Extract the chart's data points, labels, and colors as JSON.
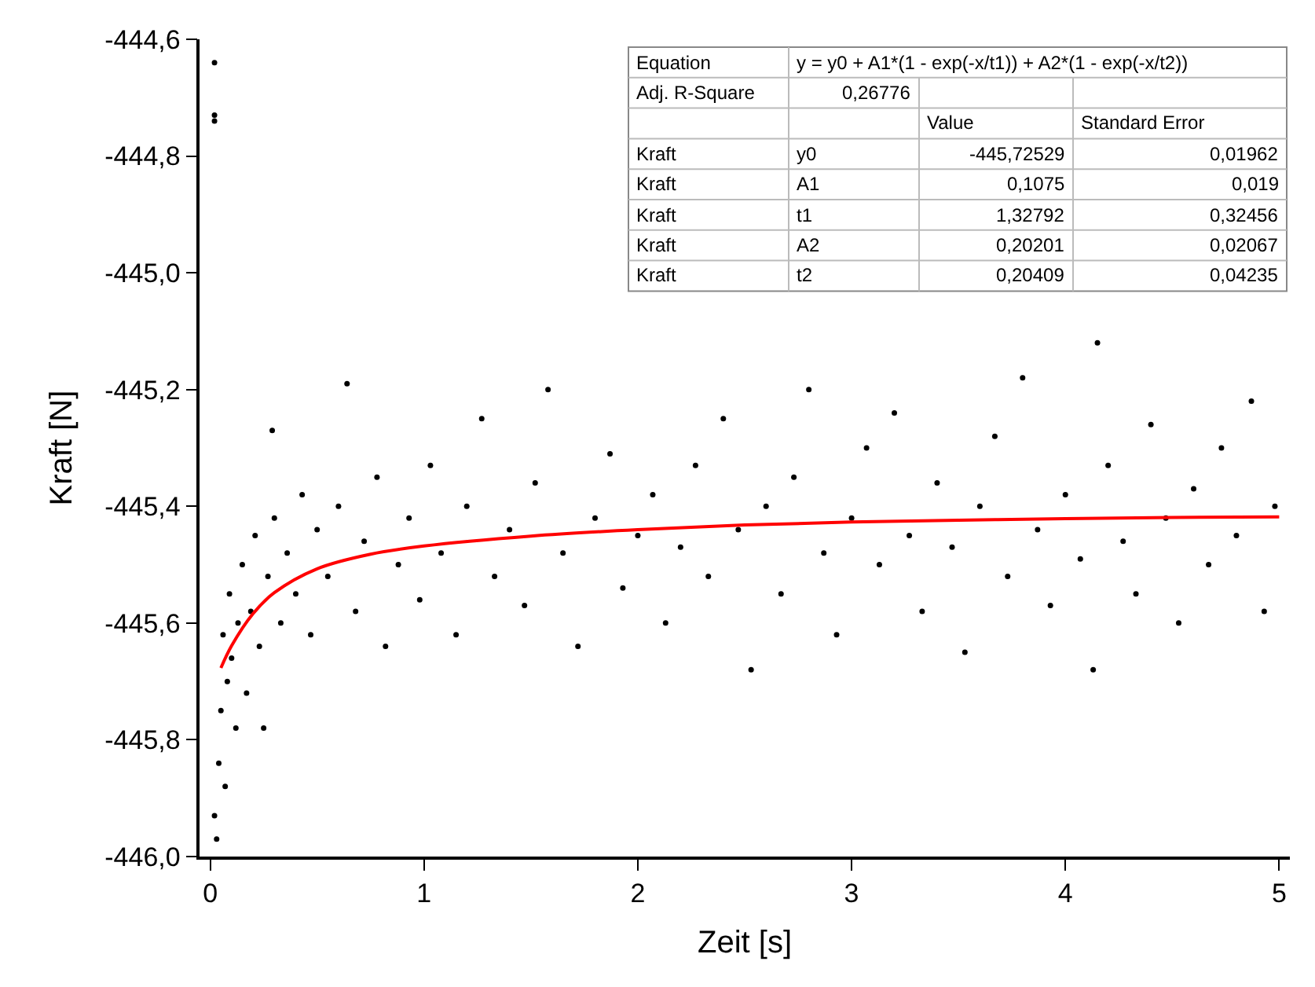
{
  "chart_data": {
    "type": "scatter",
    "xlabel": "Zeit [s]",
    "ylabel": "Kraft [N]",
    "xlim": [
      -0.05,
      5.05
    ],
    "xticks": [
      0,
      1,
      2,
      3,
      4,
      5
    ],
    "ylim": [
      -446.0,
      -444.6
    ],
    "yticks": [
      {
        "value": -446.0,
        "label": "-446,0"
      },
      {
        "value": -445.8,
        "label": "-445,8"
      },
      {
        "value": -445.6,
        "label": "-445,6"
      },
      {
        "value": -445.4,
        "label": "-445,4"
      },
      {
        "value": -445.2,
        "label": "-445,2"
      },
      {
        "value": -445.0,
        "label": "-445,0"
      },
      {
        "value": -444.8,
        "label": "-444,8"
      },
      {
        "value": -444.6,
        "label": "-444,6"
      }
    ],
    "grid": false,
    "series": [
      {
        "color": "#000000",
        "marker": "circle",
        "x": [
          0.02,
          0.02,
          0.02,
          0.02,
          0.03,
          0.04,
          0.05,
          0.06,
          0.07,
          0.08,
          0.09,
          0.1,
          0.12,
          0.13,
          0.15,
          0.17,
          0.19,
          0.21,
          0.23,
          0.25,
          0.27,
          0.29,
          0.3,
          0.33,
          0.36,
          0.4,
          0.43,
          0.47,
          0.5,
          0.55,
          0.6,
          0.64,
          0.68,
          0.72,
          0.78,
          0.82,
          0.88,
          0.93,
          0.98,
          1.03,
          1.08,
          1.15,
          1.2,
          1.27,
          1.33,
          1.4,
          1.47,
          1.52,
          1.58,
          1.65,
          1.72,
          1.8,
          1.87,
          1.93,
          2.0,
          2.07,
          2.13,
          2.2,
          2.27,
          2.33,
          2.4,
          2.47,
          2.53,
          2.6,
          2.67,
          2.73,
          2.8,
          2.87,
          2.93,
          3.0,
          3.07,
          3.13,
          3.2,
          3.27,
          3.33,
          3.4,
          3.47,
          3.53,
          3.6,
          3.67,
          3.73,
          3.8,
          3.87,
          3.93,
          4.0,
          4.07,
          4.13,
          4.15,
          4.2,
          4.27,
          4.33,
          4.4,
          4.47,
          4.53,
          4.6,
          4.67,
          4.73,
          4.8,
          4.87,
          4.93,
          4.98
        ],
        "values": [
          -444.64,
          -444.73,
          -444.74,
          -445.93,
          -445.97,
          -445.84,
          -445.75,
          -445.62,
          -445.88,
          -445.7,
          -445.55,
          -445.66,
          -445.78,
          -445.6,
          -445.5,
          -445.72,
          -445.58,
          -445.45,
          -445.64,
          -445.78,
          -445.52,
          -445.27,
          -445.42,
          -445.6,
          -445.48,
          -445.55,
          -445.38,
          -445.62,
          -445.44,
          -445.52,
          -445.4,
          -445.19,
          -445.58,
          -445.46,
          -445.35,
          -445.64,
          -445.5,
          -445.42,
          -445.56,
          -445.33,
          -445.48,
          -445.62,
          -445.4,
          -445.25,
          -445.52,
          -445.44,
          -445.57,
          -445.36,
          -445.2,
          -445.48,
          -445.64,
          -445.42,
          -445.31,
          -445.54,
          -445.45,
          -445.38,
          -445.6,
          -445.47,
          -445.33,
          -445.52,
          -445.25,
          -445.44,
          -445.68,
          -445.4,
          -445.55,
          -445.35,
          -445.2,
          -445.48,
          -445.62,
          -445.42,
          -445.3,
          -445.5,
          -445.24,
          -445.45,
          -445.58,
          -445.36,
          -445.47,
          -445.65,
          -445.4,
          -445.28,
          -445.52,
          -445.18,
          -445.44,
          -445.57,
          -445.38,
          -445.49,
          -445.68,
          -445.12,
          -445.33,
          -445.46,
          -445.55,
          -445.26,
          -445.42,
          -445.6,
          -445.37,
          -445.5,
          -445.3,
          -445.45,
          -445.22,
          -445.58,
          -445.4
        ]
      },
      {
        "type": "line",
        "color": "#ff0000",
        "marker": "none",
        "line_style": "solid",
        "x": [
          0.05,
          0.1,
          0.2,
          0.3,
          0.5,
          0.75,
          1,
          1.5,
          2,
          2.5,
          3,
          3.5,
          4,
          4.5,
          5
        ],
        "values": [
          -445.677,
          -445.639,
          -445.584,
          -445.548,
          -445.507,
          -445.482,
          -445.468,
          -445.451,
          -445.44,
          -445.432,
          -445.427,
          -445.424,
          -445.421,
          -445.419,
          -445.418
        ]
      }
    ],
    "annotations": [
      "Equation",
      "y = y0 + A1*(1 - exp(-x/t1)) + A2*(1 - exp(-x/t2))",
      "Adj. R-Square",
      "0,26776",
      "Value",
      "Standard Error",
      "Kraft",
      "y0",
      "-445,72529",
      "0,01962",
      "Kraft",
      "A1",
      "0,1075",
      "0,019",
      "Kraft",
      "t1",
      "1,32792",
      "0,32456",
      "Kraft",
      "A2",
      "0,20201",
      "0,02067",
      "Kraft",
      "t2",
      "0,20409",
      "0,04235"
    ]
  }
}
